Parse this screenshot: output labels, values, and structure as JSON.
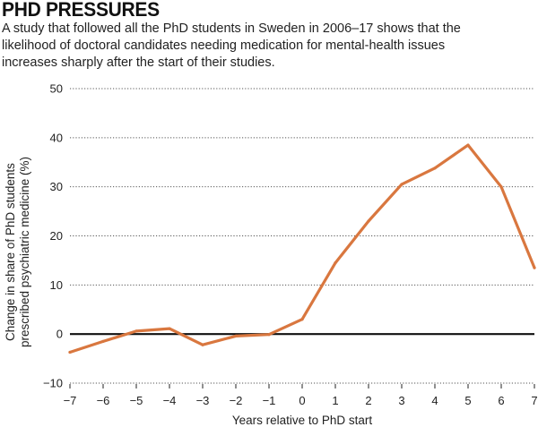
{
  "header": {
    "title": "PHD PRESSURES",
    "subtitle": "A study that followed all the PhD students in Sweden in 2006–17 shows that the likelihood of doctoral candidates needing medication for mental-health issues increases sharply after the start of their studies."
  },
  "chart_data": {
    "type": "line",
    "title": "PHD PRESSURES",
    "xlabel": "Years relative to PhD start",
    "ylabel_line1": "Change in share of PhD students",
    "ylabel_line2": "prescribed psychiatric medicine (%)",
    "xlim": [
      -7,
      7
    ],
    "ylim": [
      -10,
      50
    ],
    "xticks": [
      -7,
      -6,
      -5,
      -4,
      -3,
      -2,
      -1,
      0,
      1,
      2,
      3,
      4,
      5,
      6,
      7
    ],
    "xtick_labels": [
      "−7",
      "−6",
      "−5",
      "−4",
      "−3",
      "−2",
      "−1",
      "0",
      "1",
      "2",
      "3",
      "4",
      "5",
      "6",
      "7"
    ],
    "yticks": [
      -10,
      0,
      10,
      20,
      30,
      40,
      50
    ],
    "ytick_labels": [
      "−10",
      "0",
      "10",
      "20",
      "30",
      "40",
      "50"
    ],
    "grid": "horizontal dotted",
    "series": [
      {
        "color": "#d9773f",
        "x": [
          -7,
          -6,
          -5,
          -4,
          -3,
          -2,
          -1,
          0,
          1,
          2,
          3,
          4,
          5,
          6,
          7
        ],
        "y": [
          -3.7,
          -1.5,
          0.6,
          1.1,
          -2.2,
          -0.4,
          -0.1,
          3.0,
          14.5,
          23.0,
          30.5,
          33.8,
          38.5,
          30.0,
          13.5
        ]
      }
    ]
  }
}
